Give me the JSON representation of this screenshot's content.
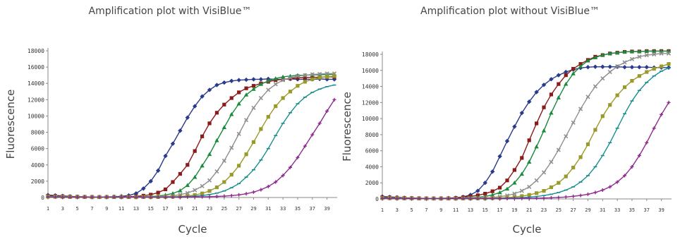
{
  "chart_data": [
    {
      "type": "line",
      "title": "Amplification plot with VisiBlue™",
      "xlabel": "Cycle",
      "ylabel": "Fluorescence",
      "ylim": [
        0,
        18000
      ],
      "xlim": [
        1,
        40
      ],
      "x_ticks": [
        1,
        3,
        5,
        7,
        9,
        11,
        13,
        15,
        17,
        19,
        21,
        23,
        25,
        27,
        29,
        31,
        33,
        35,
        37,
        39
      ],
      "y_ticks": [
        0,
        2000,
        4000,
        6000,
        8000,
        10000,
        12000,
        14000,
        16000,
        18000
      ],
      "grid": false,
      "legend": "none",
      "series": [
        {
          "color": "#2a3a8c",
          "marker": "diamond",
          "values": [
            300,
            250,
            200,
            150,
            100,
            80,
            70,
            60,
            80,
            100,
            150,
            250,
            500,
            1100,
            2000,
            3300,
            5100,
            6600,
            8200,
            9800,
            11200,
            12400,
            13200,
            13800,
            14100,
            14300,
            14400,
            14450,
            14500,
            14500,
            14550,
            14500,
            14500,
            14550,
            14500,
            14500,
            14500,
            14550,
            14500,
            14500
          ]
        },
        {
          "color": "#8b1a1a",
          "marker": "square",
          "values": [
            200,
            180,
            150,
            120,
            100,
            80,
            70,
            60,
            60,
            60,
            80,
            100,
            150,
            220,
            350,
            600,
            1000,
            1900,
            2900,
            4000,
            5700,
            7500,
            9100,
            10400,
            11400,
            12200,
            12900,
            13400,
            13700,
            14000,
            14200,
            14400,
            14500,
            14600,
            14700,
            14700,
            14750,
            14750,
            14800,
            14800
          ]
        },
        {
          "color": "#1a8a3c",
          "marker": "triangle",
          "values": [
            150,
            130,
            110,
            90,
            70,
            60,
            50,
            50,
            50,
            50,
            50,
            60,
            70,
            90,
            120,
            180,
            300,
            500,
            850,
            1500,
            2500,
            3900,
            5300,
            7000,
            8600,
            10200,
            11500,
            12600,
            13300,
            13900,
            14300,
            14600,
            14800,
            14900,
            15000,
            15000,
            15050,
            15050,
            15100,
            15100
          ]
        },
        {
          "color": "#8f8f8f",
          "marker": "x",
          "values": [
            120,
            100,
            90,
            80,
            70,
            60,
            50,
            50,
            50,
            50,
            50,
            50,
            50,
            60,
            70,
            90,
            120,
            200,
            350,
            550,
            900,
            1400,
            2100,
            3200,
            4500,
            6100,
            7800,
            9500,
            11000,
            12200,
            13200,
            13900,
            14400,
            14700,
            14900,
            15000,
            15100,
            15150,
            15200,
            15200
          ]
        },
        {
          "color": "#9a9a2a",
          "marker": "square",
          "values": [
            100,
            90,
            80,
            70,
            60,
            50,
            50,
            50,
            50,
            50,
            50,
            50,
            50,
            50,
            50,
            60,
            70,
            90,
            130,
            200,
            300,
            500,
            800,
            1250,
            1900,
            2800,
            3900,
            5300,
            6800,
            8400,
            9900,
            11200,
            12200,
            13000,
            13700,
            14200,
            14500,
            14700,
            14800,
            14900
          ]
        },
        {
          "color": "#1a8f8f",
          "marker": "dash",
          "values": [
            80,
            70,
            60,
            50,
            50,
            50,
            50,
            50,
            50,
            50,
            50,
            50,
            50,
            50,
            50,
            50,
            50,
            60,
            80,
            110,
            160,
            240,
            360,
            540,
            800,
            1200,
            1700,
            2500,
            3400,
            4600,
            6000,
            7600,
            9100,
            10400,
            11500,
            12300,
            12900,
            13300,
            13600,
            13800
          ]
        },
        {
          "color": "#8e2a8e",
          "marker": "plus",
          "values": [
            60,
            50,
            40,
            40,
            40,
            40,
            40,
            40,
            40,
            40,
            40,
            40,
            40,
            40,
            40,
            40,
            40,
            40,
            40,
            50,
            60,
            80,
            100,
            130,
            170,
            230,
            320,
            460,
            660,
            950,
            1350,
            1900,
            2700,
            3700,
            4900,
            6300,
            7700,
            9100,
            10600,
            12000
          ]
        }
      ]
    },
    {
      "type": "line",
      "title": "Amplification plot without VisiBlue™",
      "xlabel": "Cycle",
      "ylabel": "Fluorescence",
      "ylim": [
        0,
        18000
      ],
      "xlim": [
        1,
        40
      ],
      "x_ticks": [
        1,
        3,
        5,
        7,
        9,
        11,
        13,
        15,
        17,
        19,
        21,
        23,
        25,
        27,
        29,
        31,
        33,
        35,
        37,
        39
      ],
      "y_ticks": [
        0,
        2000,
        4000,
        6000,
        8000,
        10000,
        12000,
        14000,
        16000,
        18000
      ],
      "grid": false,
      "legend": "none",
      "series": [
        {
          "color": "#2a3a8c",
          "marker": "diamond",
          "values": [
            300,
            250,
            200,
            150,
            100,
            80,
            60,
            60,
            80,
            100,
            150,
            250,
            500,
            1000,
            2000,
            3400,
            5300,
            7200,
            9000,
            10700,
            12100,
            13300,
            14200,
            14900,
            15400,
            15800,
            16100,
            16300,
            16400,
            16450,
            16450,
            16450,
            16450,
            16400,
            16400,
            16400,
            16400,
            16350,
            16350,
            16350
          ]
        },
        {
          "color": "#8b1a1a",
          "marker": "square",
          "values": [
            200,
            180,
            150,
            120,
            100,
            80,
            70,
            60,
            60,
            80,
            120,
            200,
            300,
            450,
            650,
            950,
            1400,
            2300,
            3600,
            5100,
            7300,
            9400,
            11400,
            13000,
            14300,
            15400,
            16200,
            16800,
            17300,
            17700,
            17900,
            18100,
            18200,
            18300,
            18350,
            18350,
            18400,
            18400,
            18400,
            18400
          ]
        },
        {
          "color": "#1a8a3c",
          "marker": "triangle",
          "values": [
            150,
            130,
            110,
            90,
            70,
            60,
            50,
            50,
            50,
            50,
            60,
            80,
            120,
            200,
            300,
            500,
            800,
            1250,
            2000,
            3100,
            4600,
            6500,
            8500,
            10700,
            12600,
            14300,
            15600,
            16500,
            17200,
            17600,
            17900,
            18100,
            18200,
            18300,
            18350,
            18350,
            18400,
            18400,
            18400,
            18400
          ]
        },
        {
          "color": "#8f8f8f",
          "marker": "x",
          "values": [
            120,
            100,
            90,
            80,
            70,
            60,
            50,
            50,
            50,
            50,
            50,
            60,
            70,
            90,
            120,
            180,
            280,
            420,
            650,
            1000,
            1500,
            2300,
            3300,
            4600,
            6100,
            7800,
            9500,
            11200,
            12700,
            14000,
            15000,
            15800,
            16500,
            17000,
            17400,
            17700,
            17900,
            18000,
            18100,
            18100
          ]
        },
        {
          "color": "#9a9a2a",
          "marker": "square",
          "values": [
            100,
            90,
            80,
            70,
            60,
            50,
            50,
            50,
            50,
            50,
            50,
            50,
            50,
            60,
            70,
            90,
            120,
            170,
            240,
            350,
            500,
            720,
            1000,
            1450,
            2000,
            2800,
            3900,
            5200,
            6800,
            8600,
            10300,
            11700,
            12900,
            13900,
            14700,
            15300,
            15800,
            16200,
            16500,
            16800
          ]
        },
        {
          "color": "#1a8f8f",
          "marker": "dash",
          "values": [
            80,
            70,
            60,
            50,
            50,
            50,
            50,
            50,
            50,
            50,
            50,
            50,
            50,
            50,
            50,
            60,
            70,
            90,
            120,
            160,
            220,
            300,
            420,
            580,
            800,
            1100,
            1500,
            2100,
            2900,
            4000,
            5400,
            7000,
            8800,
            10600,
            12200,
            13500,
            14500,
            15300,
            15900,
            16300
          ]
        },
        {
          "color": "#8e2a8e",
          "marker": "plus",
          "values": [
            60,
            50,
            40,
            40,
            40,
            40,
            40,
            40,
            40,
            40,
            40,
            40,
            40,
            40,
            40,
            40,
            40,
            40,
            50,
            60,
            70,
            90,
            110,
            140,
            180,
            240,
            320,
            430,
            580,
            800,
            1100,
            1500,
            2100,
            2900,
            4000,
            5400,
            7000,
            8800,
            10500,
            12000
          ]
        }
      ]
    }
  ]
}
